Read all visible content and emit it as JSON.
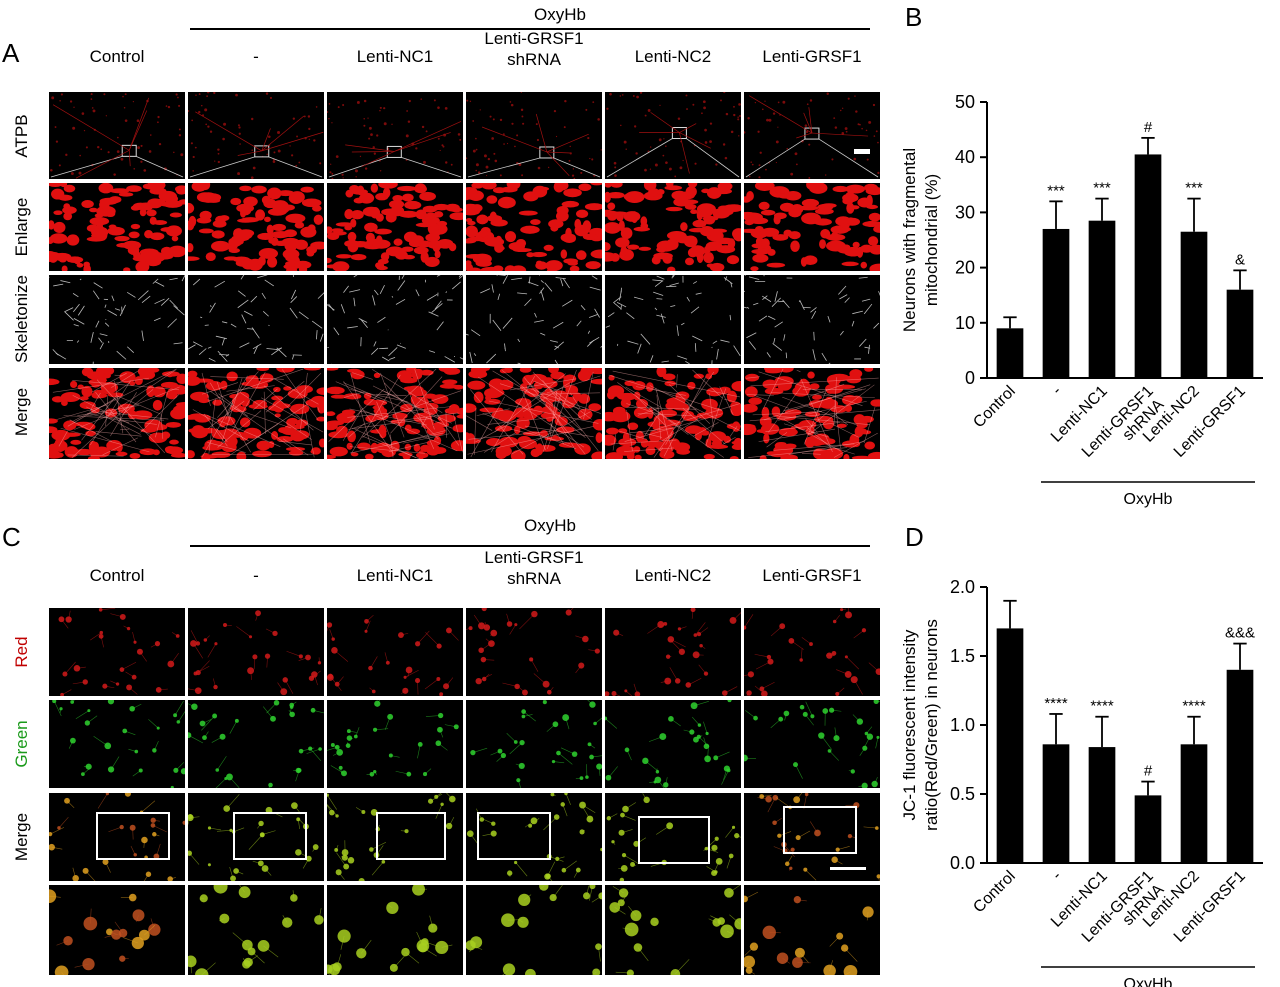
{
  "panels": {
    "A": {
      "letter": "A",
      "group_label": "OxyHb",
      "columns": [
        "Control",
        "-",
        "Lenti-NC1",
        "Lenti-GRSF1\nshRNA",
        "Lenti-NC2",
        "Lenti-GRSF1"
      ],
      "rows": [
        "ATPB",
        "Enlarge",
        "Skeletonize",
        "Merge"
      ]
    },
    "C": {
      "letter": "C",
      "group_label": "OxyHb",
      "columns": [
        "Control",
        "-",
        "Lenti-NC1",
        "Lenti-GRSF1\nshRNA",
        "Lenti-NC2",
        "Lenti-GRSF1"
      ],
      "rows": [
        "Red",
        "Green",
        "Merge",
        ""
      ],
      "row_colors": [
        "#c00000",
        "#1a9a1a",
        "#000000",
        "#000000"
      ]
    }
  },
  "chart_data": [
    {
      "letter": "B",
      "type": "bar",
      "categories": [
        "Control",
        "-",
        "Lenti-NC1",
        "Lenti-GRSF1\nshRNA",
        "Lenti-NC2",
        "Lenti-GRSF1"
      ],
      "values": [
        9,
        27,
        28.5,
        40.5,
        26.5,
        16
      ],
      "errors": [
        2,
        5,
        4,
        3,
        6,
        3.5
      ],
      "annotations": [
        "",
        "***",
        "***",
        "#",
        "***",
        "&"
      ],
      "ylabel": "Neurons with fragmental\nmitochondrial (%)",
      "ylim": [
        0,
        50
      ],
      "yticks": [
        "0",
        "10",
        "20",
        "30",
        "40",
        "50"
      ],
      "group_label": "OxyHb",
      "bar_color": "#000000"
    },
    {
      "letter": "D",
      "type": "bar",
      "categories": [
        "Control",
        "-",
        "Lenti-NC1",
        "Lenti-GRSF1\nshRNA",
        "Lenti-NC2",
        "Lenti-GRSF1"
      ],
      "values": [
        1.7,
        0.86,
        0.84,
        0.49,
        0.86,
        1.4
      ],
      "errors": [
        0.2,
        0.22,
        0.22,
        0.1,
        0.2,
        0.19
      ],
      "annotations": [
        "",
        "****",
        "****",
        "#",
        "****",
        "&&&"
      ],
      "ylabel": "JC-1 fluorescent intensity\nratio(Red/Green) in neurons",
      "ylim": [
        0,
        2.0
      ],
      "yticks": [
        "0.0",
        "0.5",
        "1.0",
        "1.5",
        "2.0"
      ],
      "group_label": "OxyHb",
      "bar_color": "#000000"
    }
  ]
}
